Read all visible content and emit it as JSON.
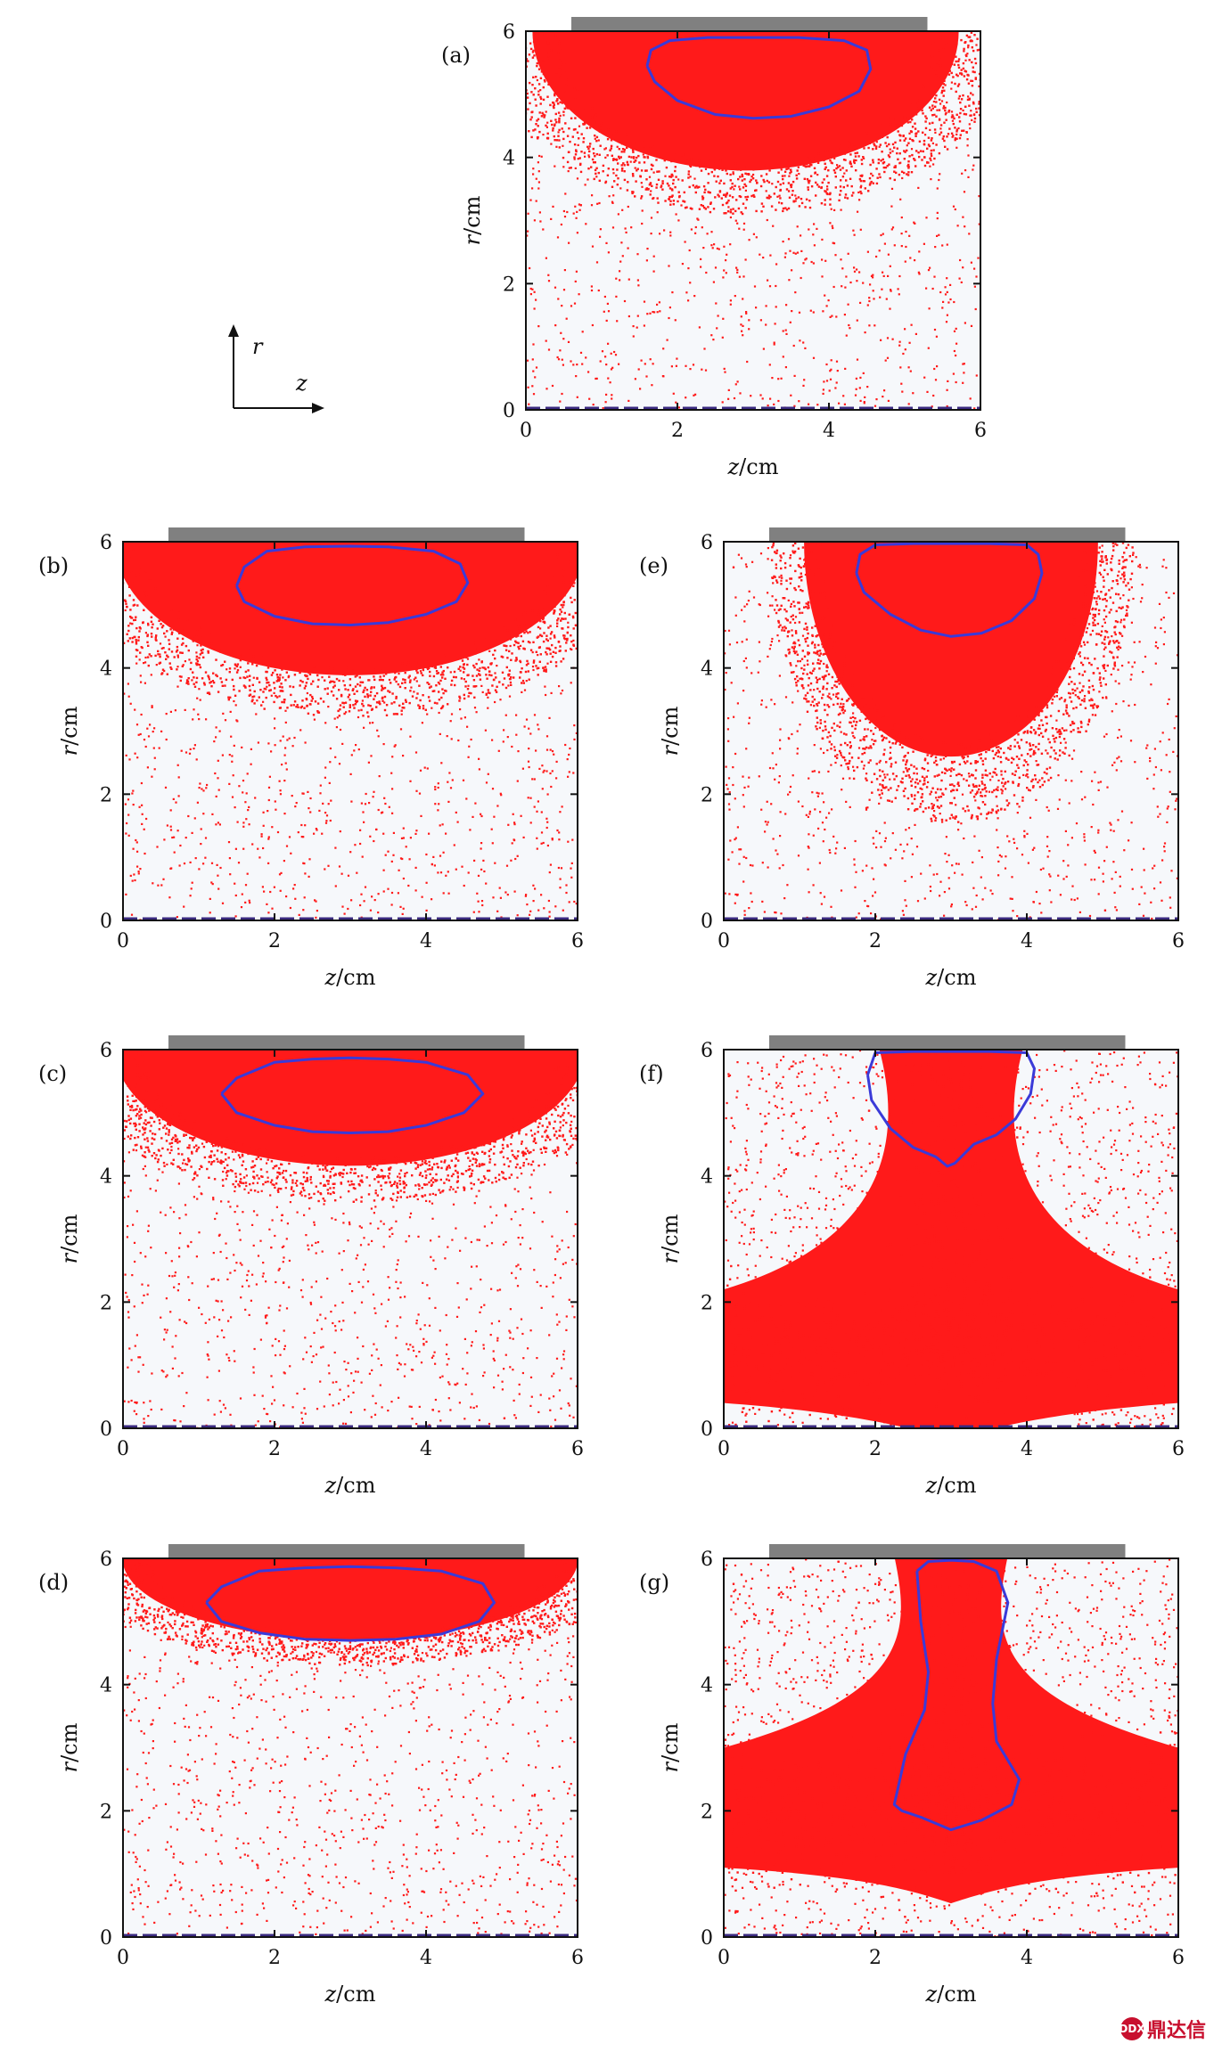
{
  "chart_data": [
    {
      "id": "a",
      "type": "scatter",
      "panel_label": "(a)",
      "xlabel_var": "z",
      "xlabel_unit": "/cm",
      "ylabel_var": "r",
      "ylabel_unit": "/cm",
      "xlim": [
        0,
        6
      ],
      "ylim": [
        0,
        6
      ],
      "xticks": [
        "0",
        "2",
        "4",
        "6"
      ],
      "yticks": [
        "0",
        "2",
        "4",
        "6"
      ],
      "electrode": {
        "z_start": 0.6,
        "z_end": 5.3
      },
      "dense_region": {
        "shape": "half-ellipse",
        "z_center": 2.9,
        "z_halfwidth": 2.9,
        "r_top": 6.0,
        "r_bottom": 3.6
      },
      "contour": {
        "z": [
          1.6,
          1.7,
          2.0,
          2.5,
          3.0,
          3.5,
          4.0,
          4.4,
          4.55,
          4.5,
          4.2,
          3.6,
          3.0,
          2.4,
          1.9,
          1.65,
          1.6
        ],
        "r": [
          5.45,
          5.2,
          4.9,
          4.68,
          4.62,
          4.65,
          4.8,
          5.05,
          5.4,
          5.7,
          5.85,
          5.9,
          5.9,
          5.9,
          5.85,
          5.7,
          5.45
        ]
      }
    },
    {
      "id": "b",
      "type": "scatter",
      "panel_label": "(b)",
      "xlabel_var": "z",
      "xlabel_unit": "/cm",
      "ylabel_var": "r",
      "ylabel_unit": "/cm",
      "xlim": [
        0,
        6
      ],
      "ylim": [
        0,
        6
      ],
      "xticks": [
        "0",
        "2",
        "4",
        "6"
      ],
      "yticks": [
        "0",
        "2",
        "4",
        "6"
      ],
      "electrode": {
        "z_start": 0.6,
        "z_end": 5.3
      },
      "dense_region": {
        "shape": "half-ellipse",
        "z_center": 3.0,
        "z_halfwidth": 3.2,
        "r_top": 6.0,
        "r_bottom": 3.7
      },
      "contour": {
        "z": [
          1.5,
          1.6,
          2.0,
          2.5,
          3.0,
          3.5,
          4.0,
          4.4,
          4.55,
          4.45,
          4.1,
          3.5,
          3.0,
          2.4,
          1.9,
          1.6,
          1.5
        ],
        "r": [
          5.3,
          5.05,
          4.82,
          4.7,
          4.68,
          4.72,
          4.85,
          5.05,
          5.35,
          5.65,
          5.85,
          5.92,
          5.93,
          5.92,
          5.85,
          5.6,
          5.3
        ]
      }
    },
    {
      "id": "c",
      "type": "scatter",
      "panel_label": "(c)",
      "xlabel_var": "z",
      "xlabel_unit": "/cm",
      "ylabel_var": "r",
      "ylabel_unit": "/cm",
      "xlim": [
        0,
        6
      ],
      "ylim": [
        0,
        6
      ],
      "xticks": [
        "0",
        "2",
        "4",
        "6"
      ],
      "yticks": [
        "0",
        "2",
        "4",
        "6"
      ],
      "electrode": {
        "z_start": 0.6,
        "z_end": 5.3
      },
      "dense_region": {
        "shape": "half-ellipse",
        "z_center": 3.0,
        "z_halfwidth": 3.2,
        "r_top": 6.0,
        "r_bottom": 4.0
      },
      "contour": {
        "z": [
          1.3,
          1.5,
          2.0,
          2.5,
          3.0,
          3.5,
          4.0,
          4.5,
          4.75,
          4.55,
          4.0,
          3.5,
          3.0,
          2.5,
          2.0,
          1.5,
          1.3
        ],
        "r": [
          5.3,
          5.0,
          4.8,
          4.7,
          4.68,
          4.7,
          4.8,
          5.0,
          5.3,
          5.6,
          5.8,
          5.85,
          5.87,
          5.85,
          5.8,
          5.55,
          5.3
        ]
      }
    },
    {
      "id": "d",
      "type": "scatter",
      "panel_label": "(d)",
      "xlabel_var": "z",
      "xlabel_unit": "/cm",
      "ylabel_var": "r",
      "ylabel_unit": "/cm",
      "xlim": [
        0,
        6
      ],
      "ylim": [
        0,
        6
      ],
      "xticks": [
        "0",
        "2",
        "4",
        "6"
      ],
      "yticks": [
        "0",
        "2",
        "4",
        "6"
      ],
      "electrode": {
        "z_start": 0.6,
        "z_end": 5.3
      },
      "dense_region": {
        "shape": "half-ellipse",
        "z_center": 3.0,
        "z_halfwidth": 3.1,
        "r_top": 6.0,
        "r_bottom": 4.6
      },
      "contour": {
        "z": [
          1.1,
          1.3,
          1.8,
          2.4,
          3.0,
          3.6,
          4.2,
          4.7,
          4.9,
          4.75,
          4.2,
          3.6,
          3.0,
          2.4,
          1.8,
          1.3,
          1.1
        ],
        "r": [
          5.3,
          5.0,
          4.82,
          4.72,
          4.7,
          4.72,
          4.8,
          5.0,
          5.3,
          5.6,
          5.8,
          5.85,
          5.87,
          5.85,
          5.8,
          5.55,
          5.3
        ]
      }
    },
    {
      "id": "e",
      "type": "scatter",
      "panel_label": "(e)",
      "xlabel_var": "z",
      "xlabel_unit": "/cm",
      "ylabel_var": "r",
      "ylabel_unit": "/cm",
      "xlim": [
        0,
        6
      ],
      "ylim": [
        0,
        6
      ],
      "xticks": [
        "0",
        "2",
        "4",
        "6"
      ],
      "yticks": [
        "0",
        "2",
        "4",
        "6"
      ],
      "electrode": {
        "z_start": 0.6,
        "z_end": 5.3
      },
      "dense_region": {
        "shape": "half-ellipse",
        "z_center": 3.0,
        "z_halfwidth": 2.0,
        "r_top": 6.0,
        "r_bottom": 2.3
      },
      "contour": {
        "z": [
          1.75,
          1.85,
          2.2,
          2.6,
          3.0,
          3.4,
          3.8,
          4.1,
          4.2,
          4.15,
          4.0,
          3.5,
          3.0,
          2.5,
          2.0,
          1.8,
          1.75
        ],
        "r": [
          5.5,
          5.2,
          4.85,
          4.6,
          4.5,
          4.55,
          4.75,
          5.1,
          5.5,
          5.8,
          5.95,
          5.97,
          5.97,
          5.97,
          5.95,
          5.8,
          5.5
        ]
      }
    },
    {
      "id": "f",
      "type": "scatter",
      "panel_label": "(f)",
      "xlabel_var": "z",
      "xlabel_unit": "/cm",
      "ylabel_var": "r",
      "ylabel_unit": "/cm",
      "xlim": [
        0,
        6
      ],
      "ylim": [
        0,
        6
      ],
      "xticks": [
        "0",
        "2",
        "4",
        "6"
      ],
      "yticks": [
        "0",
        "2",
        "4",
        "6"
      ],
      "electrode": {
        "z_start": 0.6,
        "z_end": 5.3
      },
      "dense_region": {
        "shape": "plume",
        "z_center": 3.0,
        "stem_halfwidth": 0.7,
        "base_r_top": 2.2,
        "base_r_bottom": 0.4
      },
      "contour": {
        "z": [
          1.9,
          1.95,
          2.2,
          2.5,
          2.8,
          2.95,
          3.05,
          3.3,
          3.6,
          3.85,
          4.05,
          4.1,
          4.0,
          3.5,
          3.0,
          2.5,
          2.0,
          1.9
        ],
        "r": [
          5.6,
          5.2,
          4.75,
          4.45,
          4.3,
          4.15,
          4.2,
          4.5,
          4.65,
          4.9,
          5.3,
          5.7,
          5.95,
          5.97,
          5.97,
          5.97,
          5.95,
          5.6
        ]
      }
    },
    {
      "id": "g",
      "type": "scatter",
      "panel_label": "(g)",
      "xlabel_var": "z",
      "xlabel_unit": "/cm",
      "ylabel_var": "r",
      "ylabel_unit": "/cm",
      "xlim": [
        0,
        6
      ],
      "ylim": [
        0,
        6
      ],
      "xticks": [
        "0",
        "2",
        "4",
        "6"
      ],
      "yticks": [
        "0",
        "2",
        "4",
        "6"
      ],
      "electrode": {
        "z_start": 0.6,
        "z_end": 5.3
      },
      "dense_region": {
        "shape": "plume",
        "z_center": 3.0,
        "stem_halfwidth": 0.55,
        "base_r_top": 3.0,
        "base_r_bottom": 1.1
      },
      "contour": {
        "z": [
          2.55,
          2.6,
          2.7,
          2.65,
          2.4,
          2.25,
          2.35,
          2.6,
          3.0,
          3.4,
          3.8,
          3.9,
          3.6,
          3.55,
          3.6,
          3.75,
          3.6,
          3.3,
          3.0,
          2.7,
          2.55
        ],
        "r": [
          5.8,
          5.0,
          4.2,
          3.6,
          2.9,
          2.1,
          2.0,
          1.9,
          1.7,
          1.85,
          2.1,
          2.5,
          3.1,
          3.7,
          4.4,
          5.3,
          5.8,
          5.95,
          5.97,
          5.95,
          5.8
        ]
      }
    }
  ],
  "axis_inset": {
    "vertical_label": "r",
    "horizontal_label": "z"
  },
  "watermark": {
    "text": "鼎达信",
    "logo": "DDX"
  },
  "colors": {
    "particle": "#ff1a1a",
    "contour": "#3a3ad8",
    "electrode": "#808080",
    "axis": "#111111",
    "dash": "#3a2a80"
  }
}
